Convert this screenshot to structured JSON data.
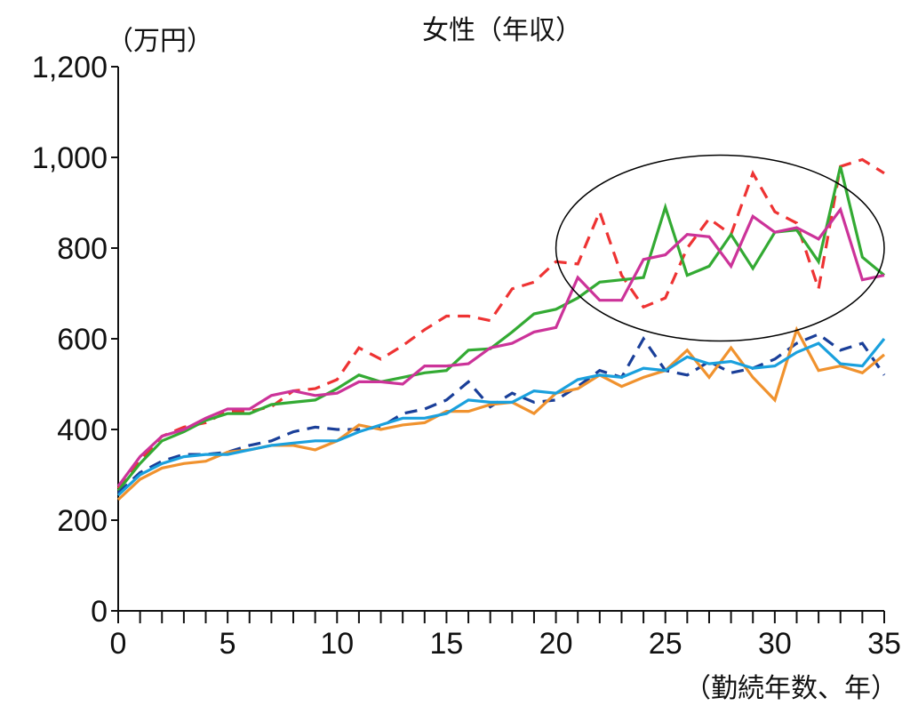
{
  "chart_data": {
    "type": "line",
    "title": "女性（年収）",
    "ylabel": "（万円）",
    "xlabel": "（勤続年数、年）",
    "ylim": [
      0,
      1200
    ],
    "xlim": [
      0,
      35
    ],
    "y_ticks": [
      0,
      200,
      400,
      600,
      800,
      1000,
      1200
    ],
    "y_tick_labels": [
      "0",
      "200",
      "400",
      "600",
      "800",
      "1,000",
      "1,200"
    ],
    "x_ticks": [
      0,
      5,
      10,
      15,
      20,
      25,
      30,
      35
    ],
    "x_tick_labels": [
      "0",
      "5",
      "10",
      "15",
      "20",
      "25",
      "30",
      "35"
    ],
    "grid": false,
    "x": [
      0,
      1,
      2,
      3,
      4,
      5,
      6,
      7,
      8,
      9,
      10,
      11,
      12,
      13,
      14,
      15,
      16,
      17,
      18,
      19,
      20,
      21,
      22,
      23,
      24,
      25,
      26,
      27,
      28,
      29,
      30,
      31,
      32,
      33,
      34,
      35
    ],
    "series": [
      {
        "color": "#ee3333",
        "style": "dashed",
        "values": [
          270,
          330,
          385,
          405,
          415,
          440,
          440,
          450,
          485,
          490,
          510,
          580,
          555,
          585,
          620,
          650,
          650,
          640,
          710,
          725,
          770,
          765,
          880,
          740,
          670,
          690,
          800,
          865,
          830,
          965,
          880,
          855,
          710,
          980,
          995,
          965
        ]
      },
      {
        "color": "#33aa33",
        "style": "solid",
        "values": [
          265,
          325,
          375,
          395,
          420,
          435,
          435,
          455,
          460,
          465,
          490,
          520,
          505,
          515,
          525,
          530,
          575,
          578,
          615,
          655,
          665,
          690,
          725,
          730,
          735,
          890,
          740,
          760,
          830,
          755,
          835,
          840,
          770,
          980,
          780,
          740
        ]
      },
      {
        "color": "#cc3399",
        "style": "solid",
        "values": [
          275,
          340,
          385,
          400,
          425,
          445,
          445,
          475,
          485,
          475,
          480,
          505,
          505,
          500,
          540,
          540,
          545,
          580,
          590,
          615,
          625,
          735,
          685,
          685,
          775,
          785,
          830,
          825,
          760,
          870,
          835,
          845,
          820,
          885,
          730,
          740
        ]
      },
      {
        "color": "#1a3f99",
        "style": "dashed",
        "values": [
          260,
          305,
          330,
          345,
          345,
          350,
          365,
          375,
          395,
          405,
          400,
          400,
          405,
          435,
          445,
          465,
          505,
          450,
          480,
          460,
          465,
          495,
          530,
          515,
          600,
          530,
          520,
          550,
          525,
          535,
          555,
          590,
          610,
          575,
          590,
          520
        ]
      },
      {
        "color": "#f0922e",
        "style": "solid",
        "values": [
          245,
          290,
          315,
          325,
          330,
          350,
          355,
          365,
          365,
          355,
          375,
          410,
          400,
          410,
          415,
          440,
          440,
          455,
          460,
          435,
          480,
          490,
          520,
          495,
          515,
          530,
          575,
          515,
          580,
          515,
          465,
          620,
          530,
          540,
          525,
          565
        ]
      },
      {
        "color": "#1aa0dd",
        "style": "solid",
        "values": [
          255,
          300,
          325,
          340,
          345,
          345,
          355,
          365,
          370,
          375,
          375,
          395,
          410,
          425,
          425,
          435,
          465,
          460,
          460,
          485,
          480,
          510,
          520,
          515,
          535,
          530,
          560,
          545,
          550,
          535,
          540,
          570,
          590,
          545,
          540,
          600
        ]
      }
    ],
    "annotations": [
      {
        "shape": "ellipse",
        "center": [
          27.5,
          800
        ],
        "radii": [
          7.5,
          205
        ],
        "color": "#000000"
      }
    ]
  }
}
